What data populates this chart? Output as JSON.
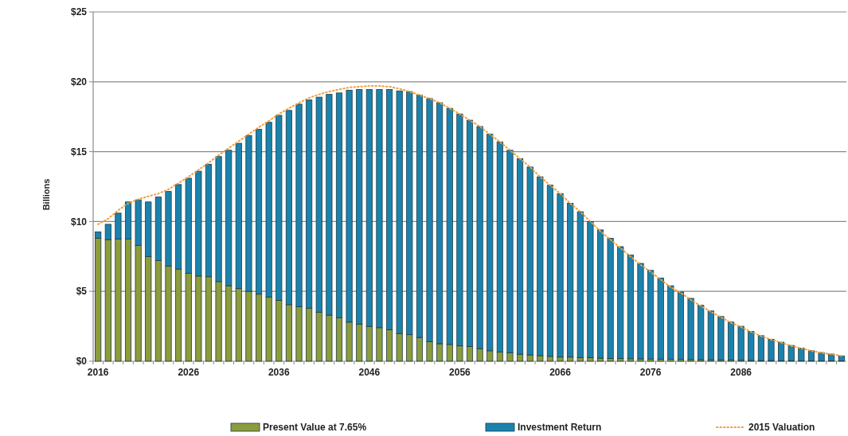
{
  "chart_data": {
    "type": "bar",
    "stacked": true,
    "ylabel": "Billions",
    "legend": "bottom",
    "grid": "y",
    "categories": [
      "2016",
      null,
      null,
      null,
      null,
      null,
      null,
      null,
      null,
      "2026",
      null,
      null,
      null,
      null,
      null,
      null,
      null,
      null,
      "2036",
      null,
      null,
      null,
      null,
      null,
      null,
      null,
      null,
      "2046",
      null,
      null,
      null,
      null,
      null,
      null,
      null,
      null,
      "2056",
      null,
      null,
      null,
      null,
      null,
      null,
      null,
      null,
      null,
      "2066",
      null,
      null,
      null,
      null,
      null,
      null,
      null,
      null,
      "2076",
      null,
      null,
      null,
      null,
      null,
      null,
      null,
      null,
      "2086",
      null,
      null,
      null,
      null,
      null,
      null,
      null,
      null,
      null,
      null
    ],
    "ylim": [
      0,
      25
    ],
    "yticks": [
      {
        "value": 0,
        "label": "$0"
      },
      {
        "value": 5,
        "label": "$5"
      },
      {
        "value": 10,
        "label": "$10"
      },
      {
        "value": 15,
        "label": "$15"
      },
      {
        "value": 20,
        "label": "$20"
      },
      {
        "value": 25,
        "label": "$25"
      }
    ],
    "series": [
      {
        "name": "Present Value at 7.65%",
        "color": "#8c9c3c",
        "values": [
          8.8,
          8.7,
          8.75,
          8.75,
          8.3,
          7.5,
          7.2,
          6.8,
          6.6,
          6.3,
          6.1,
          6.05,
          5.7,
          5.4,
          5.2,
          5.0,
          4.8,
          4.6,
          4.35,
          4.05,
          3.9,
          3.8,
          3.5,
          3.3,
          3.1,
          2.8,
          2.65,
          2.5,
          2.4,
          2.25,
          1.98,
          1.9,
          1.7,
          1.4,
          1.25,
          1.2,
          1.1,
          1.05,
          0.9,
          0.75,
          0.65,
          0.6,
          0.5,
          0.45,
          0.4,
          0.35,
          0.3,
          0.3,
          0.25,
          0.25,
          0.22,
          0.2,
          0.19,
          0.18,
          0.17,
          0.16,
          0.15,
          0.14,
          0.13,
          0.12,
          0.11,
          0.1,
          0.09,
          0.08,
          0.07,
          0.06,
          0.05,
          0.05,
          0.04,
          0.04,
          0.03,
          0.03,
          0.02,
          0.02,
          0.02
        ]
      },
      {
        "name": "Investment Return",
        "color": "#1b82ad",
        "values": [
          0.46,
          1.1,
          1.85,
          2.65,
          3.25,
          3.9,
          4.55,
          5.35,
          6.05,
          6.8,
          7.5,
          8.05,
          8.95,
          9.7,
          10.4,
          11.15,
          11.8,
          12.5,
          13.25,
          13.9,
          14.5,
          14.9,
          15.4,
          15.8,
          16.1,
          16.6,
          16.8,
          16.95,
          17.05,
          17.2,
          17.37,
          17.4,
          17.35,
          17.4,
          17.25,
          16.9,
          16.6,
          16.2,
          15.9,
          15.5,
          15.05,
          14.5,
          14.0,
          13.45,
          12.8,
          12.25,
          11.7,
          11.0,
          10.45,
          9.75,
          9.18,
          8.6,
          8.01,
          7.42,
          6.83,
          6.34,
          5.8,
          5.26,
          4.83,
          4.38,
          3.89,
          3.5,
          3.11,
          2.72,
          2.43,
          2.07,
          1.78,
          1.52,
          1.32,
          1.09,
          0.91,
          0.72,
          0.6,
          0.49,
          0.36
        ]
      },
      {
        "name": "2015 Valuation",
        "type": "line",
        "line_style": "dotted",
        "color": "#f0a040",
        "values": [
          9.8,
          10.2,
          10.8,
          11.3,
          11.6,
          11.8,
          12.0,
          12.3,
          12.75,
          13.2,
          13.7,
          14.2,
          14.75,
          15.25,
          15.75,
          16.25,
          16.75,
          17.2,
          17.7,
          18.1,
          18.5,
          18.85,
          19.1,
          19.3,
          19.45,
          19.6,
          19.65,
          19.7,
          19.7,
          19.65,
          19.5,
          19.3,
          19.05,
          18.8,
          18.5,
          18.1,
          17.7,
          17.25,
          16.8,
          16.25,
          15.7,
          15.1,
          14.5,
          13.9,
          13.2,
          12.6,
          12.0,
          11.3,
          10.7,
          10.0,
          9.3,
          8.7,
          8.1,
          7.5,
          6.9,
          6.4,
          5.85,
          5.3,
          4.9,
          4.4,
          3.95,
          3.55,
          3.15,
          2.75,
          2.45,
          2.1,
          1.8,
          1.55,
          1.33,
          1.1,
          0.92,
          0.74,
          0.6,
          0.5,
          0.38
        ]
      }
    ]
  }
}
